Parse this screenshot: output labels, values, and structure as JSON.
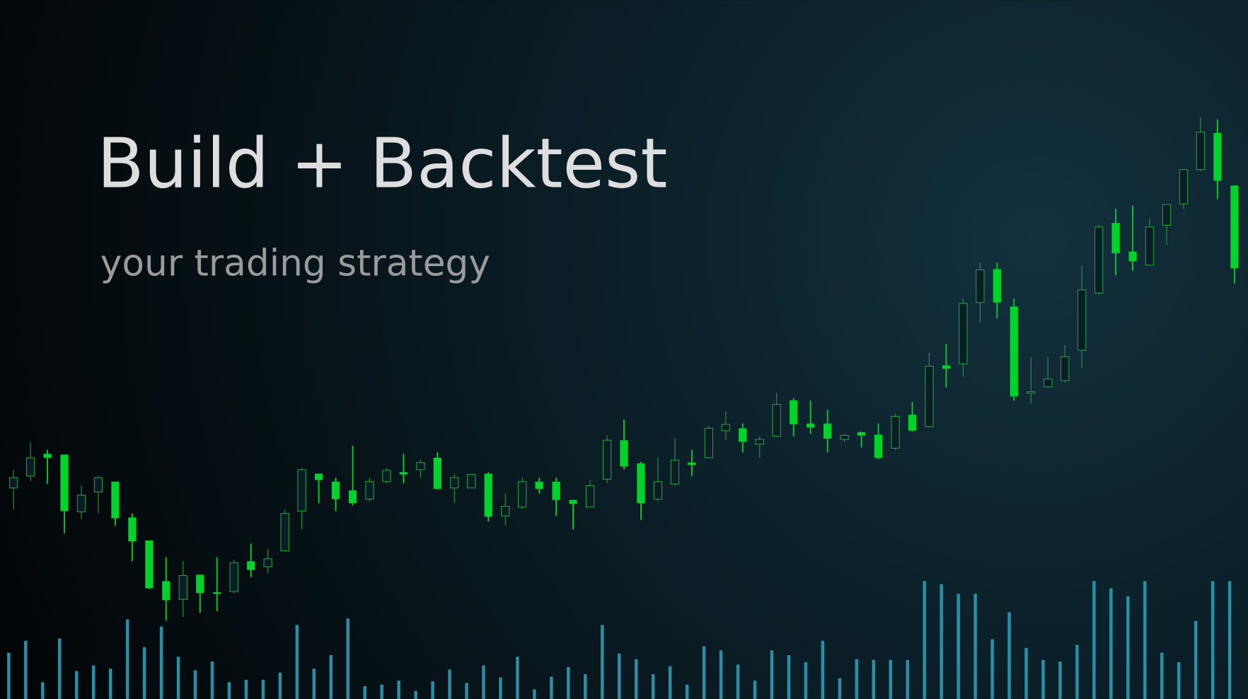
{
  "chart_data": {
    "type": "candlestick",
    "title": "Build + Backtest",
    "subtitle": "your trading strategy",
    "ylim": [
      0,
      878
    ],
    "up_color": "#1f9a3c",
    "down_color": "#00d42a",
    "open": [
      265,
      280,
      308,
      307,
      235,
      260,
      273,
      228,
      199,
      148,
      125,
      156,
      134,
      135,
      173,
      166,
      186,
      236,
      283,
      273,
      262,
      251,
      273,
      285,
      288,
      303,
      265,
      265,
      283,
      230,
      241,
      273,
      273,
      250,
      241,
      276,
      325,
      296,
      251,
      270,
      297,
      303,
      337,
      340,
      320,
      330,
      375,
      346,
      346,
      326,
      335,
      332,
      315,
      357,
      342,
      419,
      421,
      498,
      540,
      493,
      385,
      392,
      400,
      438,
      510,
      598,
      562,
      545,
      595,
      622,
      665,
      711,
      645
    ],
    "high": [
      288,
      323,
      313,
      307,
      268,
      280,
      273,
      233,
      199,
      178,
      173,
      156,
      178,
      175,
      195,
      188,
      238,
      290,
      283,
      278,
      318,
      278,
      290,
      308,
      301,
      310,
      283,
      282,
      285,
      258,
      278,
      278,
      278,
      250,
      275,
      331,
      351,
      298,
      303,
      328,
      313,
      343,
      361,
      346,
      330,
      385,
      378,
      375,
      363,
      333,
      336,
      346,
      358,
      373,
      435,
      446,
      503,
      548,
      548,
      503,
      430,
      430,
      445,
      544,
      596,
      616,
      620,
      603,
      621,
      665,
      731,
      728,
      645
    ],
    "low": [
      238,
      274,
      270,
      208,
      226,
      233,
      218,
      173,
      138,
      98,
      103,
      108,
      110,
      133,
      153,
      158,
      185,
      213,
      246,
      236,
      243,
      248,
      271,
      271,
      278,
      263,
      246,
      265,
      223,
      218,
      238,
      258,
      230,
      213,
      241,
      271,
      288,
      225,
      248,
      268,
      280,
      303,
      325,
      310,
      303,
      330,
      330,
      333,
      310,
      323,
      316,
      301,
      313,
      336,
      341,
      391,
      405,
      473,
      478,
      375,
      371,
      391,
      398,
      416,
      508,
      532,
      538,
      545,
      570,
      616,
      663,
      628,
      522
    ],
    "close": [
      278,
      303,
      303,
      236,
      256,
      278,
      227,
      198,
      139,
      124,
      155,
      133,
      132,
      171,
      162,
      176,
      233,
      288,
      275,
      251,
      246,
      273,
      287,
      282,
      297,
      264,
      278,
      282,
      229,
      242,
      273,
      264,
      250,
      245,
      268,
      325,
      292,
      246,
      273,
      300,
      294,
      340,
      345,
      323,
      326,
      370,
      345,
      341,
      327,
      331,
      331,
      303,
      355,
      337,
      418,
      415,
      497,
      539,
      498,
      380,
      386,
      402,
      430,
      514,
      593,
      560,
      550,
      593,
      621,
      665,
      712,
      651,
      541
    ],
    "volume": {
      "color": "#2a8ea6",
      "ylim": [
        0,
        878
      ],
      "values": [
        58,
        73,
        21,
        76,
        35,
        42,
        38,
        100,
        65,
        91,
        53,
        36,
        47,
        21,
        24,
        24,
        33,
        93,
        38,
        55,
        101,
        16,
        18,
        23,
        10,
        22,
        37,
        20,
        42,
        27,
        53,
        12,
        28,
        40,
        31,
        93,
        57,
        50,
        31,
        41,
        18,
        66,
        61,
        43,
        23,
        61,
        55,
        46,
        73,
        26,
        50,
        49,
        49,
        49,
        148,
        144,
        132,
        132,
        75,
        109,
        64,
        49,
        47,
        68,
        148,
        139,
        129,
        148,
        58,
        46,
        98,
        148,
        148
      ]
    }
  }
}
